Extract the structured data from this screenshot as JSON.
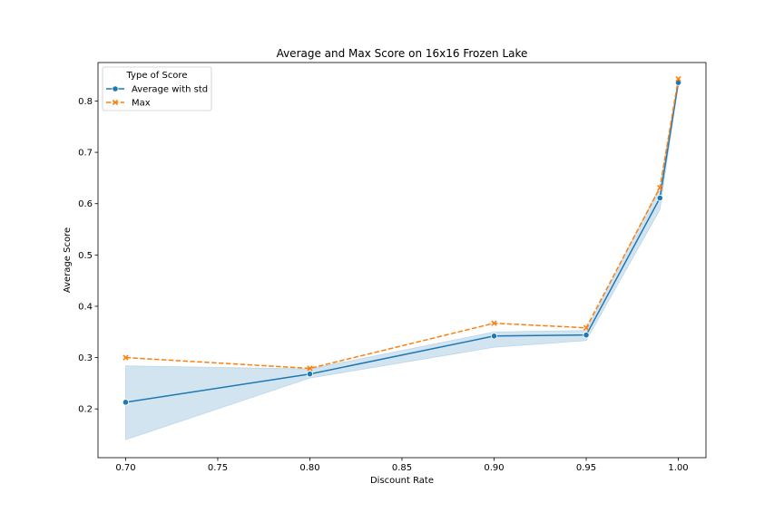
{
  "chart_data": {
    "type": "line",
    "title": "Average and Max Score on 16x16 Frozen Lake",
    "xlabel": "Discount Rate",
    "ylabel": "Average Score",
    "xlim": [
      0.685,
      1.015
    ],
    "ylim": [
      0.105,
      0.875
    ],
    "xticks": [
      0.7,
      0.75,
      0.8,
      0.85,
      0.9,
      0.95,
      1.0
    ],
    "xtick_labels": [
      "0.70",
      "0.75",
      "0.80",
      "0.85",
      "0.90",
      "0.95",
      "1.00"
    ],
    "yticks": [
      0.2,
      0.3,
      0.4,
      0.5,
      0.6,
      0.7,
      0.8
    ],
    "ytick_labels": [
      "0.2",
      "0.3",
      "0.4",
      "0.5",
      "0.6",
      "0.7",
      "0.8"
    ],
    "grid": false,
    "legend": {
      "title": "Type of Score",
      "placement": "top-left"
    },
    "x": [
      0.7,
      0.8,
      0.9,
      0.95,
      0.99,
      1.0
    ],
    "series": [
      {
        "name": "Average with std",
        "color": "#1f77b4",
        "marker": "circle",
        "linestyle": "solid",
        "values": [
          0.213,
          0.268,
          0.342,
          0.344,
          0.611,
          0.836
        ],
        "band_lower": [
          0.14,
          0.26,
          0.32,
          0.333,
          0.588,
          0.833
        ],
        "band_upper": [
          0.284,
          0.278,
          0.35,
          0.353,
          0.634,
          0.842
        ]
      },
      {
        "name": "Max",
        "color": "#ff7f0e",
        "marker": "x",
        "linestyle": "dashed",
        "values": [
          0.3,
          0.279,
          0.367,
          0.358,
          0.631,
          0.843
        ]
      }
    ]
  }
}
